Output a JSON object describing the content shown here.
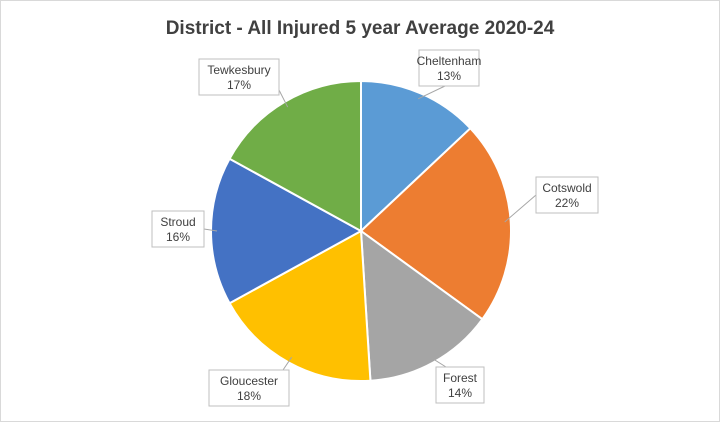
{
  "chart_data": {
    "type": "pie",
    "title": "District - All Injured 5 year Average 2020-24",
    "slices": [
      {
        "name": "Cheltenham",
        "value": 13,
        "label": "13%",
        "color": "#5B9BD5"
      },
      {
        "name": "Cotswold",
        "value": 22,
        "label": "22%",
        "color": "#ED7D31"
      },
      {
        "name": "Forest",
        "value": 14,
        "label": "14%",
        "color": "#A5A5A5"
      },
      {
        "name": "Gloucester",
        "value": 18,
        "label": "18%",
        "color": "#FFC000"
      },
      {
        "name": "Stroud",
        "value": 16,
        "label": "16%",
        "color": "#4472C4"
      },
      {
        "name": "Tewkesbury",
        "value": 17,
        "label": "17%",
        "color": "#70AD47"
      }
    ],
    "legend": "none",
    "data_labels": "callouts"
  }
}
